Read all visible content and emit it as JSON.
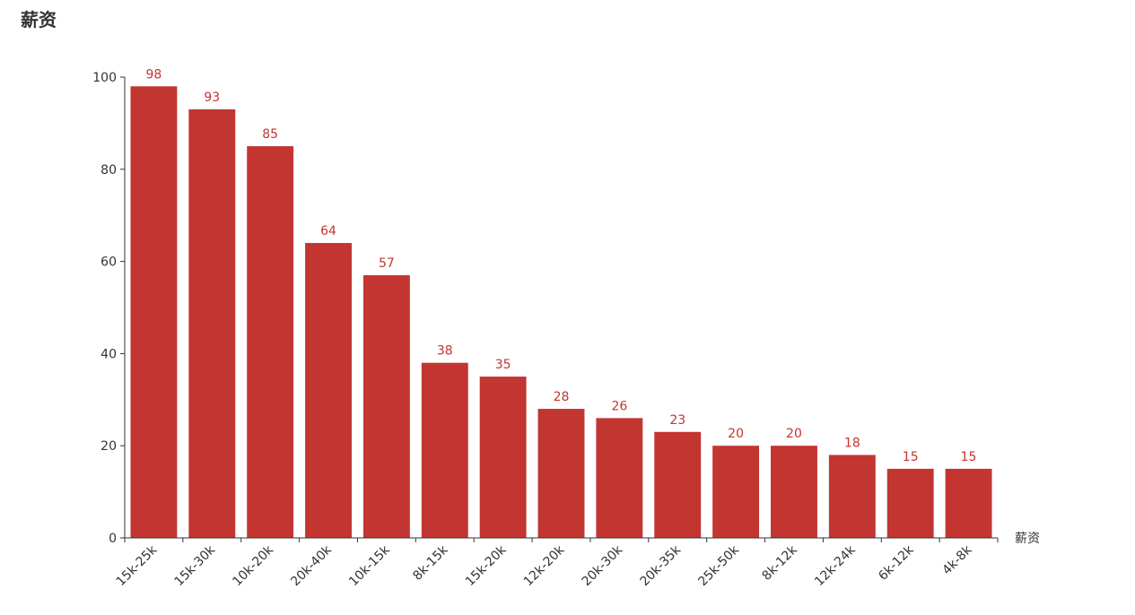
{
  "chart_data": {
    "type": "bar",
    "title": "薪资",
    "xlabel": "薪资",
    "ylabel": "",
    "ylim": [
      0,
      100
    ],
    "yticks": [
      0,
      20,
      40,
      60,
      80,
      100
    ],
    "grid": false,
    "bar_color": "#c23531",
    "categories": [
      "15k-25k",
      "15k-30k",
      "10k-20k",
      "20k-40k",
      "10k-15k",
      "8k-15k",
      "15k-20k",
      "12k-20k",
      "20k-30k",
      "20k-35k",
      "25k-50k",
      "8k-12k",
      "12k-24k",
      "6k-12k",
      "4k-8k"
    ],
    "values": [
      98,
      93,
      85,
      64,
      57,
      38,
      35,
      28,
      26,
      23,
      20,
      20,
      18,
      15,
      15
    ]
  }
}
